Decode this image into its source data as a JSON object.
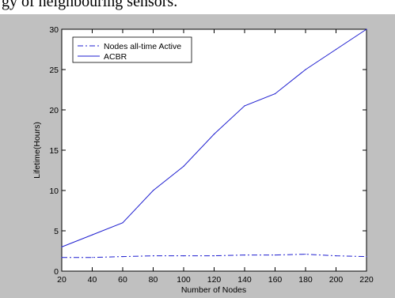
{
  "caption": {
    "text": "gy of neighbouring sensors."
  },
  "chart_data": {
    "type": "line",
    "title": "",
    "xlabel": "Number of Nodes",
    "ylabel": "Lifetime(Hours)",
    "xlim": [
      20,
      220
    ],
    "ylim": [
      0,
      30
    ],
    "xticks": [
      20,
      40,
      60,
      80,
      100,
      120,
      140,
      160,
      180,
      200,
      220
    ],
    "yticks": [
      0,
      5,
      10,
      15,
      20,
      25,
      30
    ],
    "grid": false,
    "legend_position": "top-left",
    "series": [
      {
        "name": "Nodes all-time Active",
        "style": "dashdot",
        "color": "#1f1fd0",
        "x": [
          20,
          40,
          60,
          80,
          100,
          120,
          140,
          160,
          180,
          200,
          220
        ],
        "y": [
          1.7,
          1.7,
          1.8,
          1.9,
          1.9,
          1.9,
          2.0,
          2.0,
          2.1,
          1.9,
          1.8
        ]
      },
      {
        "name": "ACBR",
        "style": "solid",
        "color": "#1f1fd0",
        "x": [
          20,
          40,
          60,
          80,
          100,
          120,
          140,
          160,
          180,
          200,
          220
        ],
        "y": [
          3.0,
          4.5,
          6.0,
          10.0,
          13.0,
          17.0,
          20.5,
          22.0,
          25.0,
          27.5,
          30.0
        ]
      }
    ]
  }
}
